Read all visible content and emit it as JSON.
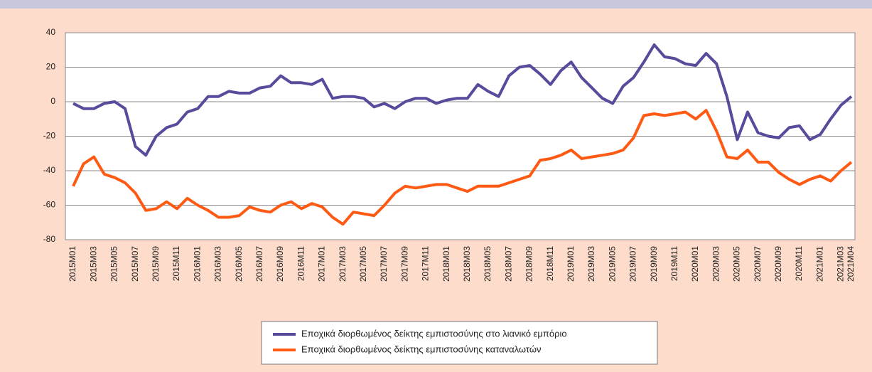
{
  "chart_data": {
    "type": "line",
    "categories": [
      "2015M01",
      null,
      "2015M03",
      null,
      "2015M05",
      null,
      "2015M07",
      null,
      "2015M09",
      null,
      "2015M11",
      null,
      "2016M01",
      null,
      "2016M03",
      null,
      "2016M05",
      null,
      "2016M07",
      null,
      "2016M09",
      null,
      "2016M11",
      null,
      "2017M01",
      null,
      "2017M03",
      null,
      "2017M05",
      null,
      "2017M07",
      null,
      "2017M09",
      null,
      "2017M11",
      null,
      "2018M01",
      null,
      "2018M03",
      null,
      "2018M05",
      null,
      "2018M07",
      null,
      "2018M09",
      null,
      "2018M11",
      null,
      "2019M01",
      null,
      "2019M03",
      null,
      "2019M05",
      null,
      "2019M07",
      null,
      "2019M09",
      null,
      "2019M11",
      null,
      "2020M01",
      null,
      "2020M03",
      null,
      "2020M05",
      null,
      "2020M07",
      null,
      "2020M09",
      null,
      "2020M11",
      null,
      "2021M01",
      null,
      "2021M03",
      "2021M04"
    ],
    "series": [
      {
        "name": "Εποχικά διορθωμένος δείκτης εμπιστοσύνης στο λιανικό εμπόριο",
        "color": "#5a4a9c",
        "values": [
          -1,
          -4,
          -4,
          -1,
          0,
          -4,
          -26,
          -31,
          -20,
          -15,
          -13,
          -6,
          -4,
          3,
          3,
          6,
          5,
          5,
          8,
          9,
          15,
          11,
          11,
          10,
          13,
          2,
          3,
          3,
          2,
          -3,
          -1,
          -4,
          0,
          2,
          2,
          -1,
          1,
          2,
          2,
          10,
          6,
          3,
          15,
          20,
          21,
          16,
          10,
          18,
          23,
          14,
          8,
          2,
          -1,
          9,
          14,
          23,
          33,
          26,
          25,
          22,
          21,
          28,
          22,
          3,
          -22,
          -6,
          -18,
          -20,
          -21,
          -15,
          -14,
          -22,
          -19,
          -10,
          -2,
          3
        ]
      },
      {
        "name": "Εποχικά διορθωμένος δείκτης εμπιστοσύνης καταναλωτών",
        "color": "#ff5a14",
        "values": [
          -49,
          -36,
          -32,
          -42,
          -44,
          -47,
          -53,
          -63,
          -62,
          -58,
          -62,
          -56,
          -60,
          -63,
          -67,
          -67,
          -66,
          -61,
          -63,
          -64,
          -60,
          -58,
          -62,
          -59,
          -61,
          -67,
          -71,
          -64,
          -65,
          -66,
          -60,
          -53,
          -49,
          -50,
          -49,
          -48,
          -48,
          -50,
          -52,
          -49,
          -49,
          -49,
          -47,
          -45,
          -43,
          -34,
          -33,
          -31,
          -28,
          -33,
          -32,
          -31,
          -30,
          -28,
          -21,
          -8,
          -7,
          -8,
          -7,
          -6,
          -10,
          -5,
          -17,
          -32,
          -33,
          -28,
          -35,
          -35,
          -41,
          -45,
          -48,
          -45,
          -43,
          -46,
          -40,
          -35
        ]
      }
    ],
    "ylim": [
      -80,
      40
    ],
    "yticks": [
      -80,
      -60,
      -40,
      -20,
      0,
      20,
      40
    ],
    "grid": true,
    "legend": "bottom"
  }
}
